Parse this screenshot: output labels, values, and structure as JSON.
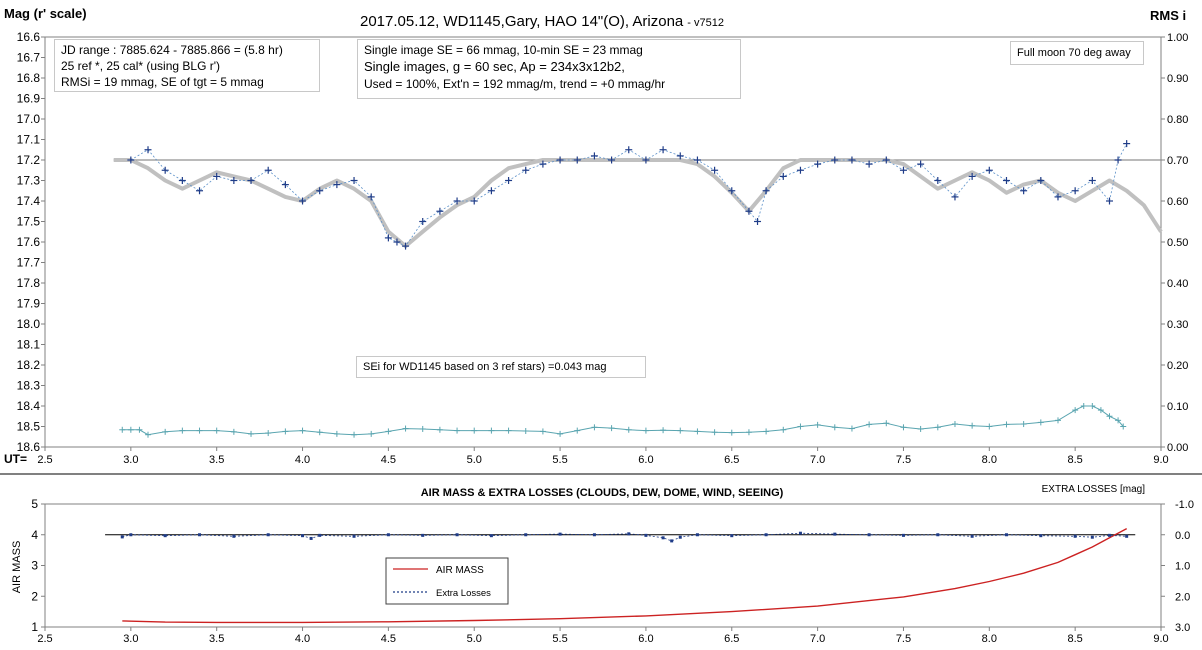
{
  "chart_data": [
    {
      "type": "scatter",
      "title": "2017.05.12,  WD1145,Gary, HAO  14\"(O), Arizona",
      "title_suffix": "- v7512",
      "ylabel": "Mag (r' scale)",
      "y2label": "RMS i",
      "xlabel": "UT=",
      "xlim": [
        2.5,
        9.0
      ],
      "ylim": [
        16.6,
        18.6
      ],
      "y2lim": [
        0.0,
        1.0
      ],
      "y_inverted": true,
      "x_ticks": [
        "2.5",
        "3.0",
        "3.5",
        "4.0",
        "4.5",
        "5.0",
        "5.5",
        "6.0",
        "6.5",
        "7.0",
        "7.5",
        "8.0",
        "8.5",
        "9.0"
      ],
      "y_ticks": [
        "16.6",
        "16.7",
        "16.8",
        "16.9",
        "17.0",
        "17.1",
        "17.2",
        "17.3",
        "17.4",
        "17.5",
        "17.6",
        "17.7",
        "17.8",
        "17.9",
        "18.0",
        "18.1",
        "18.2",
        "18.3",
        "18.4",
        "18.5",
        "18.6"
      ],
      "y2_ticks": [
        "0.00",
        "0.10",
        "0.20",
        "0.30",
        "0.40",
        "0.50",
        "0.60",
        "0.70",
        "0.80",
        "0.90",
        "1.00"
      ],
      "reference_mag": 17.2,
      "annotations": {
        "info_left": [
          "JD range  : 7885.624 - 7885.866 = (5.8 hr)",
          "25 ref *, 25 cal* (using BLG r')",
          "RMSi = 19 mmag, SE of tgt = 5 mmag"
        ],
        "info_mid": [
          "Single image SE = 66 mmag, 10-min SE = 23 mmag",
          "Single images, g = 60 sec, Ap = 234x3x12b2,",
          "Used = 100%, Ext'n = 192 mmag/m, trend = +0 mmag/hr"
        ],
        "moon": "Full moon 70 deg away",
        "sei": "SEi for WD1145 based on 3 ref stars) =0.043 mag"
      },
      "series": [
        {
          "role": "magnitude",
          "color": "#1f3c88",
          "x": [
            3.0,
            3.1,
            3.2,
            3.3,
            3.4,
            3.5,
            3.6,
            3.7,
            3.8,
            3.9,
            4.0,
            4.1,
            4.2,
            4.3,
            4.4,
            4.5,
            4.55,
            4.6,
            4.7,
            4.8,
            4.9,
            5.0,
            5.1,
            5.2,
            5.3,
            5.4,
            5.5,
            5.6,
            5.7,
            5.8,
            5.9,
            6.0,
            6.1,
            6.2,
            6.3,
            6.4,
            6.5,
            6.6,
            6.65,
            6.7,
            6.8,
            6.9,
            7.0,
            7.1,
            7.2,
            7.3,
            7.4,
            7.5,
            7.6,
            7.7,
            7.8,
            7.9,
            8.0,
            8.1,
            8.2,
            8.3,
            8.4,
            8.5,
            8.6,
            8.7,
            8.75,
            8.8
          ],
          "y": [
            17.2,
            17.15,
            17.25,
            17.3,
            17.35,
            17.28,
            17.3,
            17.3,
            17.25,
            17.32,
            17.4,
            17.35,
            17.32,
            17.3,
            17.38,
            17.58,
            17.6,
            17.62,
            17.5,
            17.45,
            17.4,
            17.4,
            17.35,
            17.3,
            17.25,
            17.22,
            17.2,
            17.2,
            17.18,
            17.2,
            17.15,
            17.2,
            17.15,
            17.18,
            17.2,
            17.25,
            17.35,
            17.45,
            17.5,
            17.35,
            17.28,
            17.25,
            17.22,
            17.2,
            17.2,
            17.22,
            17.2,
            17.25,
            17.22,
            17.3,
            17.38,
            17.28,
            17.25,
            17.3,
            17.35,
            17.3,
            17.38,
            17.35,
            17.3,
            17.4,
            17.2,
            17.12
          ]
        },
        {
          "role": "trend",
          "color": "#c0c0c0",
          "x": [
            2.9,
            3.0,
            3.1,
            3.2,
            3.3,
            3.4,
            3.5,
            3.6,
            3.7,
            3.8,
            3.9,
            4.0,
            4.1,
            4.2,
            4.3,
            4.4,
            4.5,
            4.6,
            4.7,
            4.8,
            4.9,
            5.0,
            5.1,
            5.2,
            5.3,
            5.4,
            5.5,
            5.6,
            5.7,
            5.8,
            5.9,
            6.0,
            6.1,
            6.2,
            6.3,
            6.4,
            6.5,
            6.6,
            6.7,
            6.8,
            6.9,
            7.0,
            7.1,
            7.2,
            7.3,
            7.4,
            7.5,
            7.6,
            7.7,
            7.8,
            7.9,
            8.0,
            8.1,
            8.2,
            8.3,
            8.4,
            8.5,
            8.6,
            8.7,
            8.8,
            8.9,
            9.0
          ],
          "y": [
            17.2,
            17.2,
            17.24,
            17.3,
            17.34,
            17.3,
            17.26,
            17.28,
            17.3,
            17.34,
            17.38,
            17.4,
            17.34,
            17.3,
            17.34,
            17.4,
            17.55,
            17.62,
            17.55,
            17.48,
            17.42,
            17.38,
            17.3,
            17.24,
            17.22,
            17.2,
            17.2,
            17.2,
            17.2,
            17.2,
            17.2,
            17.2,
            17.2,
            17.2,
            17.22,
            17.28,
            17.36,
            17.45,
            17.35,
            17.24,
            17.2,
            17.2,
            17.2,
            17.2,
            17.2,
            17.2,
            17.22,
            17.28,
            17.34,
            17.3,
            17.26,
            17.3,
            17.36,
            17.32,
            17.3,
            17.36,
            17.4,
            17.35,
            17.3,
            17.35,
            17.42,
            17.55
          ]
        },
        {
          "role": "rms",
          "color": "#5aa5b0",
          "axis": "right",
          "x": [
            2.95,
            3.0,
            3.05,
            3.1,
            3.2,
            3.3,
            3.4,
            3.5,
            3.6,
            3.7,
            3.8,
            3.9,
            4.0,
            4.1,
            4.2,
            4.3,
            4.4,
            4.5,
            4.6,
            4.7,
            4.8,
            4.9,
            5.0,
            5.1,
            5.2,
            5.3,
            5.4,
            5.5,
            5.6,
            5.7,
            5.8,
            5.9,
            6.0,
            6.1,
            6.2,
            6.3,
            6.4,
            6.5,
            6.6,
            6.7,
            6.8,
            6.9,
            7.0,
            7.1,
            7.2,
            7.3,
            7.4,
            7.5,
            7.6,
            7.7,
            7.8,
            7.9,
            8.0,
            8.1,
            8.2,
            8.3,
            8.4,
            8.5,
            8.55,
            8.6,
            8.65,
            8.7,
            8.75,
            8.78
          ],
          "y": [
            0.042,
            0.042,
            0.042,
            0.03,
            0.037,
            0.04,
            0.04,
            0.04,
            0.037,
            0.032,
            0.034,
            0.038,
            0.04,
            0.036,
            0.032,
            0.03,
            0.032,
            0.038,
            0.045,
            0.044,
            0.042,
            0.04,
            0.04,
            0.04,
            0.04,
            0.039,
            0.038,
            0.032,
            0.04,
            0.048,
            0.046,
            0.042,
            0.04,
            0.041,
            0.04,
            0.038,
            0.036,
            0.035,
            0.036,
            0.038,
            0.042,
            0.05,
            0.054,
            0.048,
            0.045,
            0.055,
            0.058,
            0.048,
            0.044,
            0.048,
            0.056,
            0.052,
            0.05,
            0.055,
            0.056,
            0.06,
            0.065,
            0.09,
            0.1,
            0.1,
            0.09,
            0.075,
            0.065,
            0.05
          ]
        }
      ]
    },
    {
      "type": "line",
      "title": "AIR MASS & EXTRA LOSSES (CLOUDS, DEW, DOME, WIND, SEEING)",
      "ylabel": "AIR MASS",
      "y2label": "EXTRA LOSSES [mag]",
      "xlim": [
        2.5,
        9.0
      ],
      "ylim": [
        1,
        5
      ],
      "y2lim": [
        3.0,
        -1.0
      ],
      "x_ticks": [
        "2.5",
        "3.0",
        "3.5",
        "4.0",
        "4.5",
        "5.0",
        "5.5",
        "6.0",
        "6.5",
        "7.0",
        "7.5",
        "8.0",
        "8.5",
        "9.0"
      ],
      "y_ticks": [
        "1",
        "2",
        "3",
        "4",
        "5"
      ],
      "y2_ticks": [
        "-1.0",
        "0.0",
        "1.0",
        "2.0",
        "3.0"
      ],
      "legend": {
        "placement": "center-left",
        "entries": [
          "AIR MASS",
          "Extra Losses"
        ]
      },
      "series": [
        {
          "name": "AIR MASS",
          "color": "#cc2222",
          "x": [
            2.95,
            3.2,
            3.5,
            4.0,
            4.5,
            5.0,
            5.5,
            6.0,
            6.5,
            7.0,
            7.5,
            7.8,
            8.0,
            8.2,
            8.4,
            8.5,
            8.6,
            8.7,
            8.8
          ],
          "y": [
            1.2,
            1.16,
            1.15,
            1.15,
            1.17,
            1.21,
            1.27,
            1.36,
            1.5,
            1.68,
            1.98,
            2.25,
            2.48,
            2.75,
            3.1,
            3.35,
            3.6,
            3.9,
            4.2
          ]
        },
        {
          "name": "Extra Losses",
          "color": "#1f3c88",
          "axis": "right",
          "x": [
            2.95,
            3.0,
            3.2,
            3.4,
            3.6,
            3.8,
            4.0,
            4.05,
            4.1,
            4.3,
            4.5,
            4.7,
            4.9,
            5.1,
            5.3,
            5.5,
            5.7,
            5.9,
            6.0,
            6.1,
            6.15,
            6.2,
            6.3,
            6.5,
            6.7,
            6.9,
            7.1,
            7.3,
            7.5,
            7.7,
            7.9,
            8.1,
            8.3,
            8.5,
            8.6,
            8.7,
            8.8
          ],
          "y": [
            0.07,
            0.0,
            0.03,
            0.0,
            0.05,
            0.0,
            0.03,
            0.12,
            0.02,
            0.05,
            0.0,
            0.02,
            0.0,
            0.03,
            0.0,
            -0.02,
            0.0,
            -0.03,
            0.02,
            0.1,
            0.2,
            0.08,
            0.0,
            0.03,
            0.0,
            -0.05,
            -0.02,
            0.0,
            0.02,
            0.0,
            0.05,
            0.0,
            0.03,
            0.05,
            0.08,
            0.02,
            0.05
          ]
        }
      ]
    }
  ]
}
